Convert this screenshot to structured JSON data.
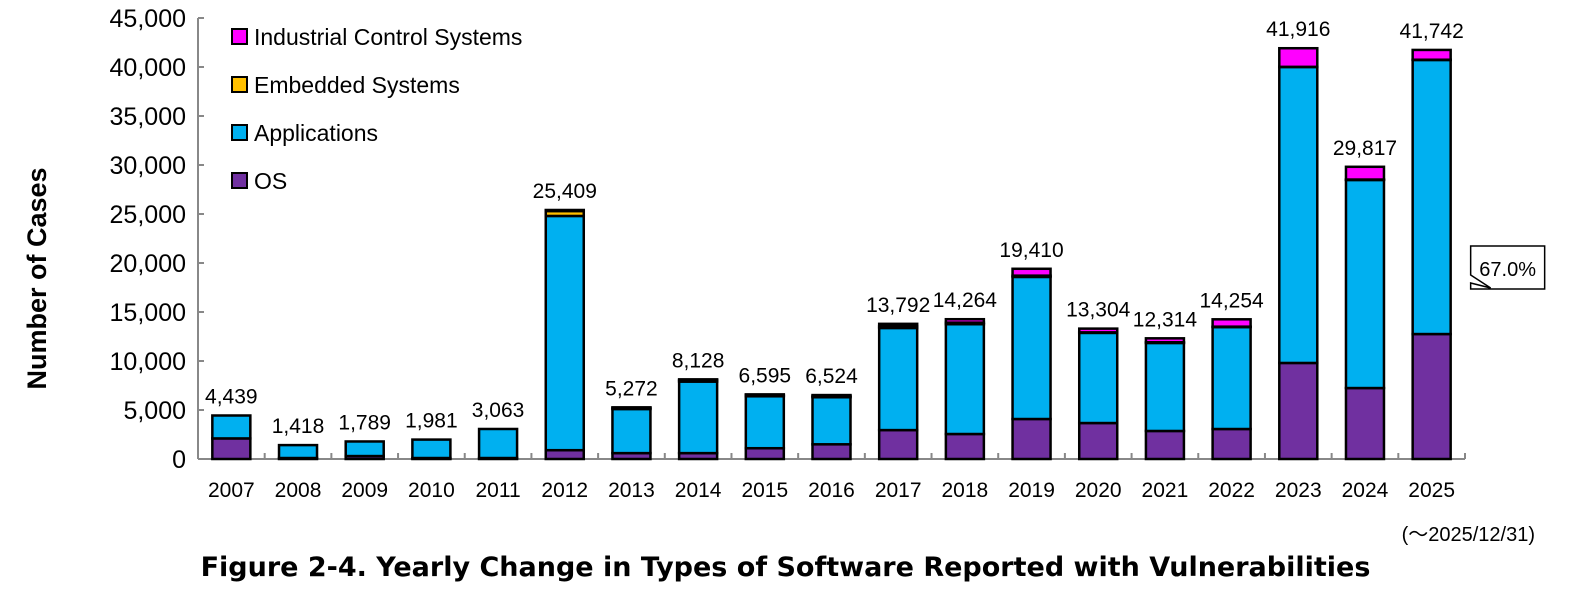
{
  "chart_data": {
    "type": "bar",
    "stacked": true,
    "title": "Figure 2-4. Yearly Change in Types of Software Reported with Vulnerabilities",
    "note": "(～2025/12/31)",
    "xlabel": "",
    "ylabel": "Number of Cases",
    "ylim": [
      0,
      45000
    ],
    "yticks": [
      0,
      5000,
      10000,
      15000,
      20000,
      25000,
      30000,
      35000,
      40000,
      45000
    ],
    "ytick_labels": [
      "0",
      "5,000",
      "10,000",
      "15,000",
      "20,000",
      "25,000",
      "30,000",
      "35,000",
      "40,000",
      "45,000"
    ],
    "grid": false,
    "legend_position": "top-left",
    "categories": [
      "2007",
      "2008",
      "2009",
      "2010",
      "2011",
      "2012",
      "2013",
      "2014",
      "2015",
      "2016",
      "2017",
      "2018",
      "2019",
      "2020",
      "2021",
      "2022",
      "2023",
      "2024",
      "2025"
    ],
    "series": [
      {
        "name": "OS",
        "color": "#7030A0",
        "values": [
          2100,
          100,
          300,
          100,
          100,
          900,
          600,
          600,
          1100,
          1500,
          2950,
          2550,
          4080,
          3670,
          2860,
          3060,
          9800,
          7240,
          12750
        ]
      },
      {
        "name": "Applications",
        "color": "#00B0F0",
        "values": [
          2339,
          1318,
          1489,
          1881,
          2963,
          23900,
          4500,
          7300,
          5300,
          4800,
          10420,
          11200,
          14500,
          9200,
          8980,
          10400,
          30200,
          21230,
          27967
        ]
      },
      {
        "name": "Embedded Systems",
        "color": "#FFC000",
        "values": [
          0,
          0,
          0,
          0,
          0,
          500,
          100,
          150,
          100,
          100,
          170,
          164,
          130,
          54,
          74,
          44,
          16,
          47,
          25
        ]
      },
      {
        "name": "Industrial Control Systems",
        "color": "#FF00FF",
        "values": [
          0,
          0,
          0,
          0,
          0,
          109,
          72,
          78,
          95,
          124,
          252,
          350,
          700,
          380,
          400,
          750,
          1900,
          1300,
          1000
        ]
      }
    ],
    "totals": [
      4439,
      1418,
      1789,
      1981,
      3063,
      25409,
      5272,
      8128,
      6595,
      6524,
      13792,
      14264,
      19410,
      13304,
      12314,
      14254,
      41916,
      29817,
      41742
    ],
    "total_labels": [
      "4,439",
      "1,418",
      "1,789",
      "1,981",
      "3,063",
      "25,409",
      "5,272",
      "8,128",
      "6,595",
      "6,524",
      "13,792",
      "14,264",
      "19,410",
      "13,304",
      "12,314",
      "14,254",
      "41,916",
      "29,817",
      "41,742"
    ],
    "legend_order": [
      "Industrial Control Systems",
      "Embedded Systems",
      "Applications",
      "OS"
    ],
    "annotations": [
      {
        "category": "2025",
        "series": "Applications",
        "text": "67.0%"
      }
    ]
  }
}
